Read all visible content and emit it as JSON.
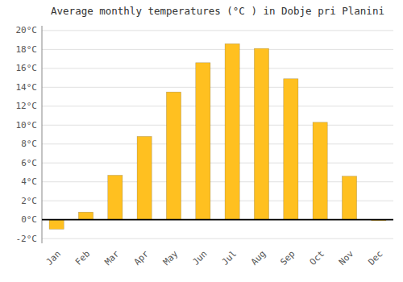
{
  "chart_data": {
    "type": "bar",
    "title": "Average monthly temperatures (°C ) in Dobje pri Planini",
    "categories": [
      "Jan",
      "Feb",
      "Mar",
      "Apr",
      "May",
      "Jun",
      "Jul",
      "Aug",
      "Sep",
      "Oct",
      "Nov",
      "Dec"
    ],
    "values": [
      -1.0,
      0.8,
      4.7,
      8.8,
      13.5,
      16.6,
      18.6,
      18.1,
      14.9,
      10.3,
      4.6,
      -0.1
    ],
    "color": "#FFC020",
    "ylim": [
      -2.5,
      20.5
    ],
    "yticks": [
      {
        "value": -2,
        "label": "-2°C"
      },
      {
        "value": 0,
        "label": "0°C"
      },
      {
        "value": 2,
        "label": "2°C"
      },
      {
        "value": 4,
        "label": "4°C"
      },
      {
        "value": 6,
        "label": "6°C"
      },
      {
        "value": 8,
        "label": "8°C"
      },
      {
        "value": 10,
        "label": "10°C"
      },
      {
        "value": 12,
        "label": "12°C"
      },
      {
        "value": 14,
        "label": "14°C"
      },
      {
        "value": 16,
        "label": "16°C"
      },
      {
        "value": 18,
        "label": "18°C"
      },
      {
        "value": 20,
        "label": "20°C"
      }
    ],
    "grid": true
  }
}
